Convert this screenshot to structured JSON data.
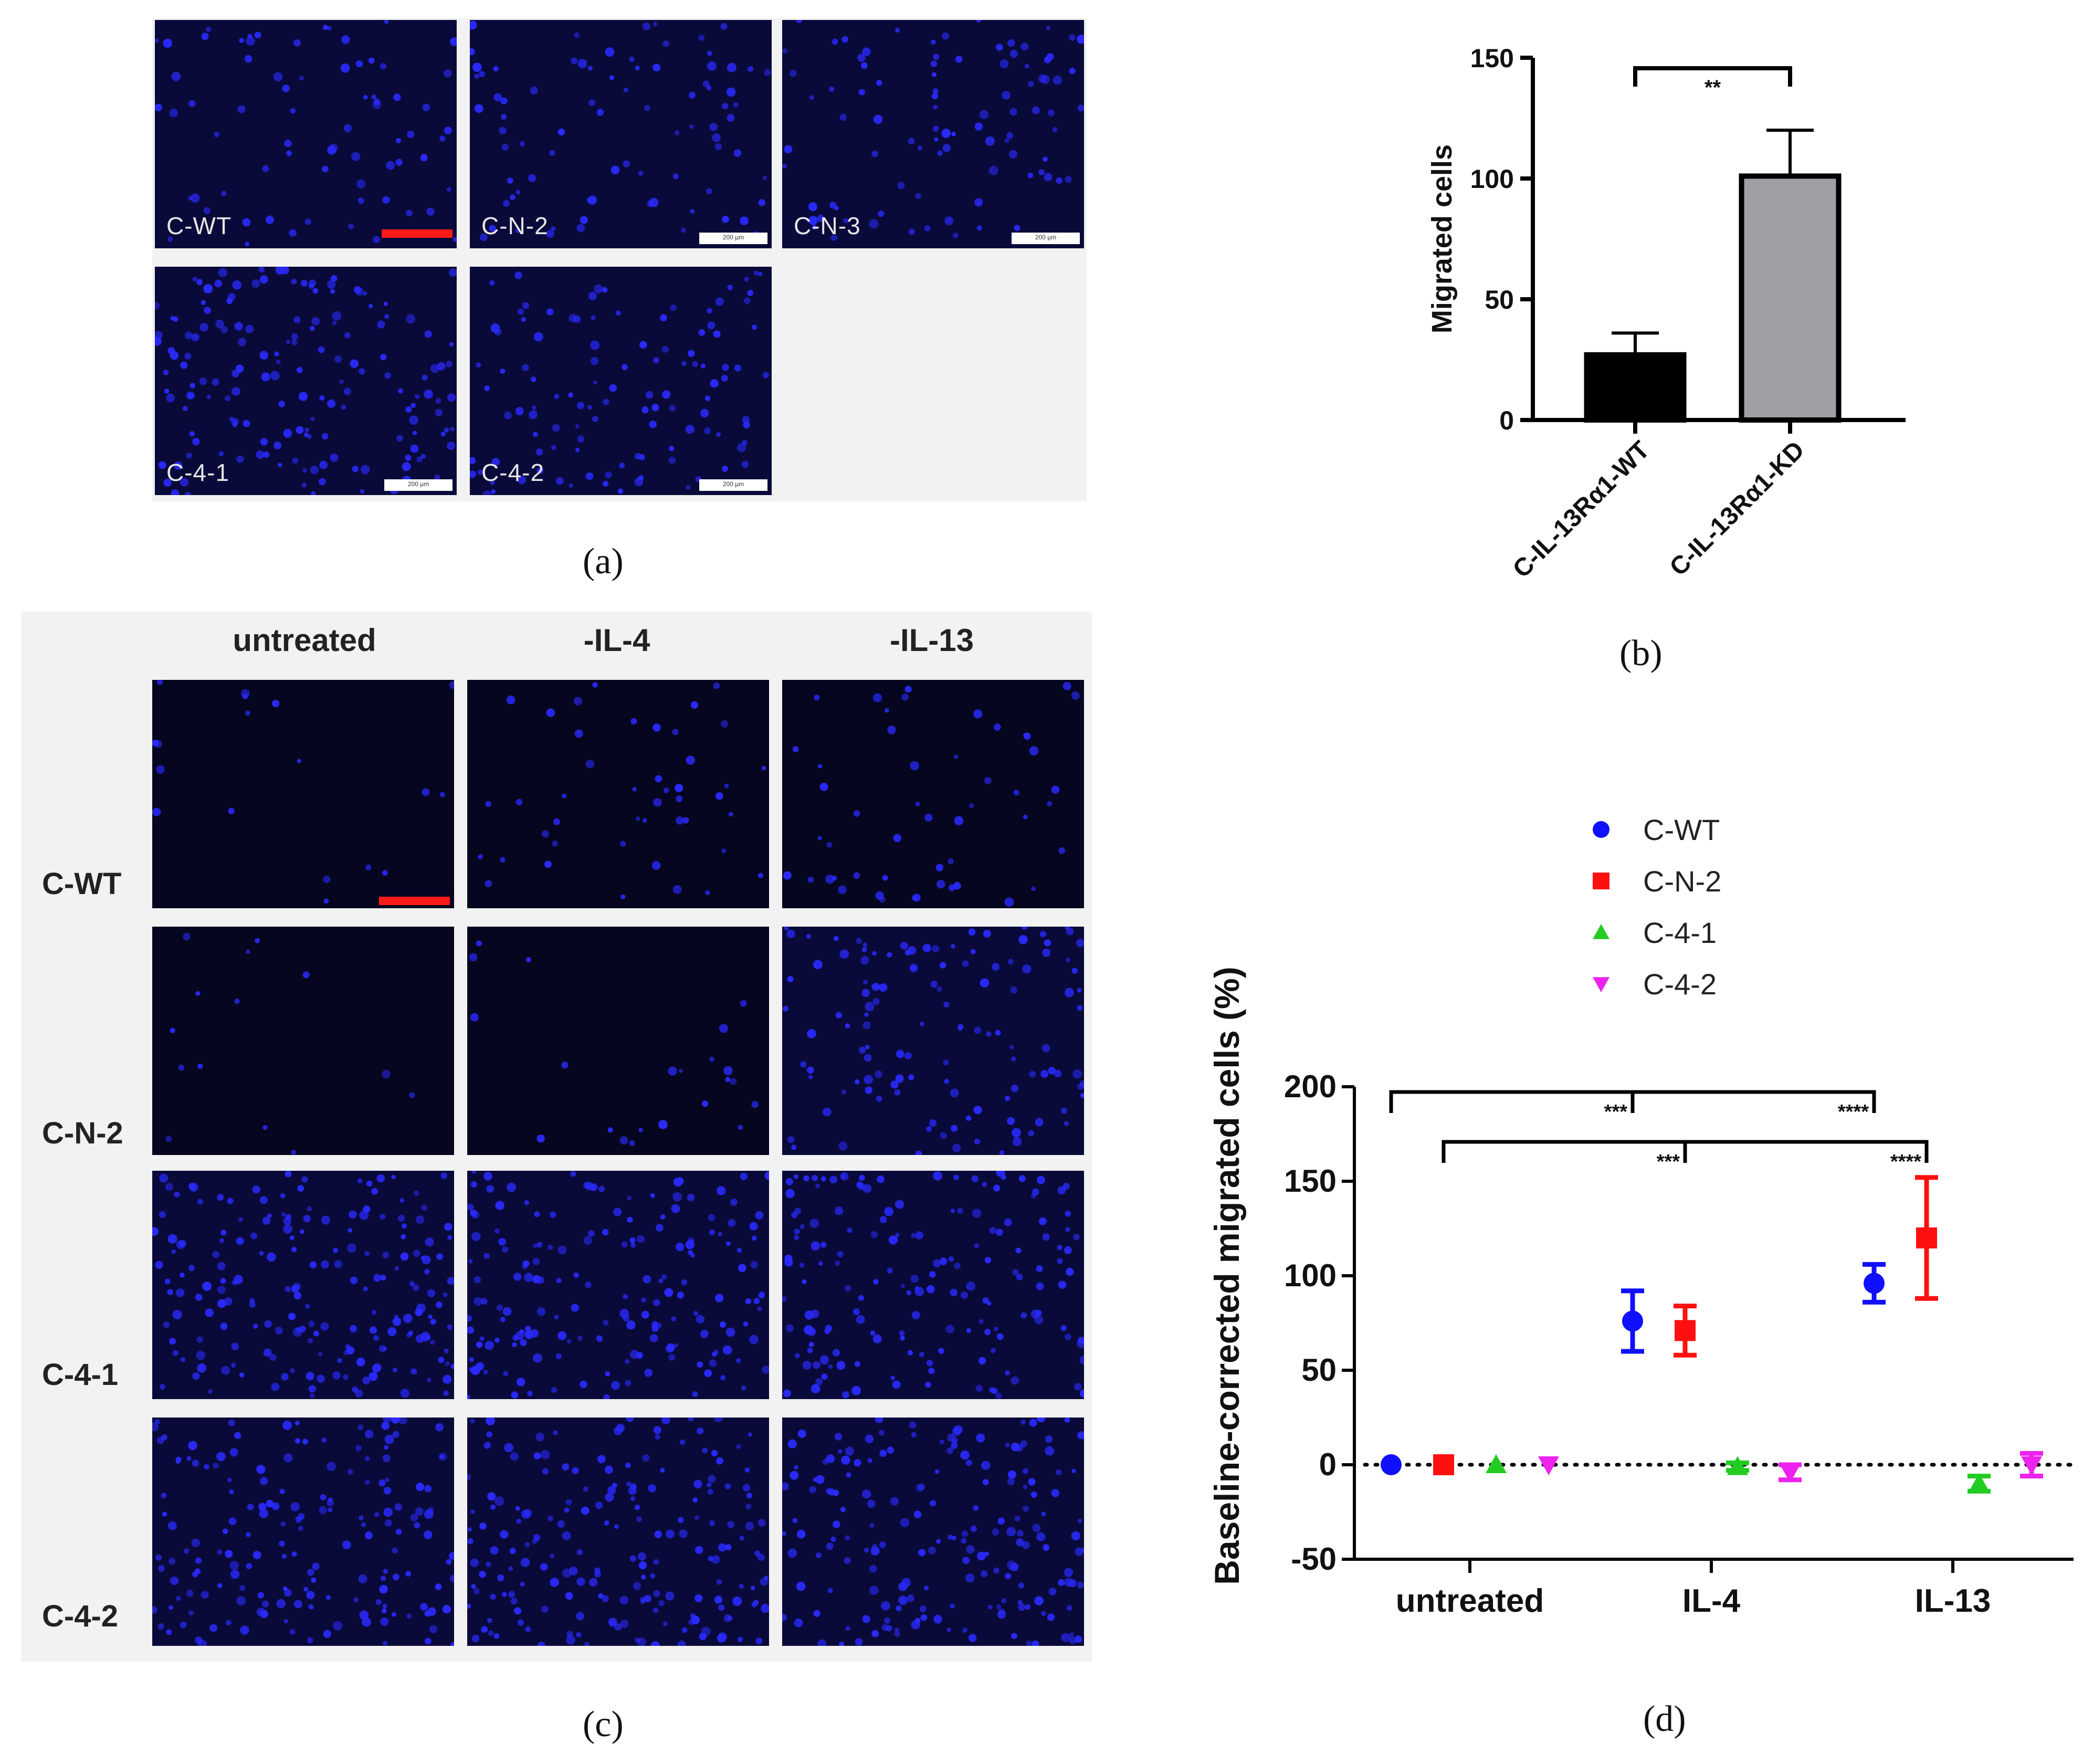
{
  "panel_a": {
    "caption": "(a)",
    "scale_text": "200 µm",
    "images": [
      {
        "label": "C-WT"
      },
      {
        "label": "C-N-2"
      },
      {
        "label": "C-N-3"
      },
      {
        "label": "C-4-1"
      },
      {
        "label": "C-4-2"
      }
    ]
  },
  "panel_c": {
    "caption": "(c)",
    "columns": [
      "untreated",
      "-IL-4",
      "-IL-13"
    ],
    "rows": [
      "C-WT",
      "C-N-2",
      "C-4-1",
      "C-4-2"
    ]
  },
  "panel_b": {
    "caption": "(b)"
  },
  "panel_d": {
    "caption": "(d)"
  },
  "colors": {
    "C-WT": "#1010ff",
    "C-N-2": "#ff1010",
    "C-4-1": "#22cc22",
    "C-4-2": "#ee22ee",
    "bar_wt": "#000000",
    "bar_kd": "#a0a0a4",
    "nuclei": "#2a2aff"
  },
  "chart_data": [
    {
      "id": "b",
      "type": "bar",
      "categories": [
        "C-IL-13Rα1-WT",
        "C-IL-13Rα1-KD"
      ],
      "values": [
        27,
        101
      ],
      "errors": [
        9,
        19
      ],
      "ylabel": "Migrated cells",
      "ylim": [
        0,
        150
      ],
      "yticks": [
        0,
        50,
        100,
        150
      ],
      "significance": [
        {
          "from": 0,
          "to": 1,
          "label": "**"
        }
      ]
    },
    {
      "id": "d",
      "type": "scatter",
      "categories": [
        "untreated",
        "IL-4",
        "IL-13"
      ],
      "ylabel": "Baseline-corrected migrated cells (%)",
      "ylim": [
        -50,
        200
      ],
      "yticks": [
        -50,
        0,
        50,
        100,
        150,
        200
      ],
      "series": [
        {
          "name": "C-WT",
          "marker": "circle",
          "values": [
            0,
            76,
            96
          ],
          "errors": [
            0,
            16,
            10
          ]
        },
        {
          "name": "C-N-2",
          "marker": "square",
          "values": [
            0,
            71,
            120
          ],
          "errors": [
            0,
            13,
            32
          ]
        },
        {
          "name": "C-4-1",
          "marker": "triangle-up",
          "values": [
            0,
            -1,
            -10
          ],
          "errors": [
            0,
            2,
            4
          ]
        },
        {
          "name": "C-4-2",
          "marker": "triangle-down",
          "values": [
            0,
            -4,
            0
          ],
          "errors": [
            0,
            4,
            6
          ]
        }
      ],
      "reference_line": 0,
      "significance": [
        {
          "series": "C-WT",
          "from": "untreated",
          "mid": "IL-4",
          "to": "IL-13",
          "labels": [
            "***",
            "****"
          ]
        },
        {
          "series": "C-N-2",
          "from": "untreated",
          "mid": "IL-4",
          "to": "IL-13",
          "labels": [
            "***",
            "****"
          ]
        }
      ]
    }
  ]
}
